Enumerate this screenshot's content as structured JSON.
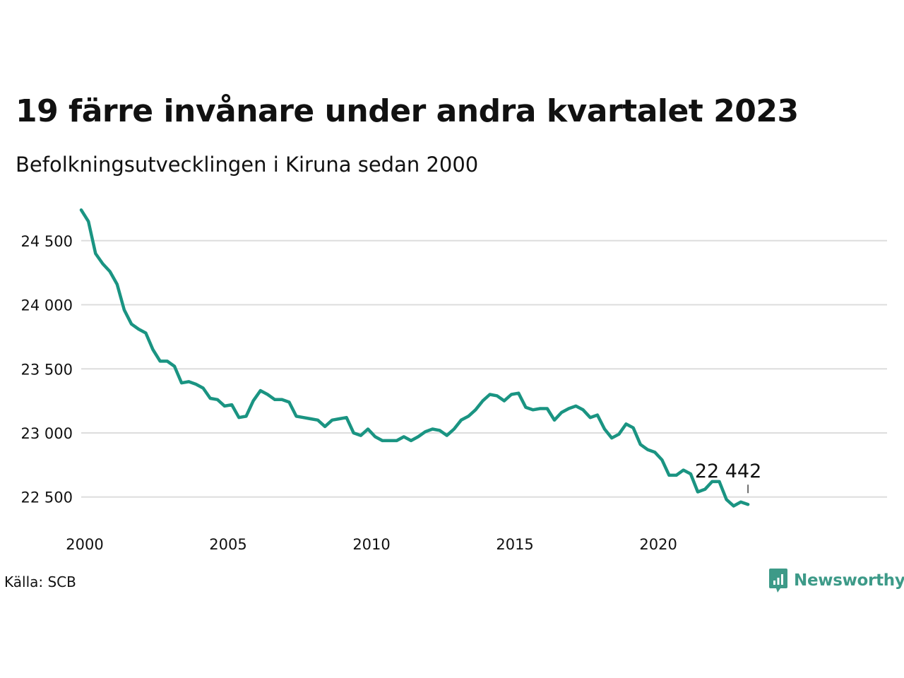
{
  "title": "19 färre invånare under andra kvartalet 2023",
  "subtitle": "Befolkningsutvecklingen i Kiruna sedan 2000",
  "source": "Källa: SCB",
  "brand": {
    "name": "Newsworthy",
    "icon": "newsworthy-logo-icon",
    "color": "#3d9a88"
  },
  "chart_data": {
    "type": "line",
    "x_start": 2000.0,
    "x_step": 0.25,
    "x_ticks": [
      2000,
      2005,
      2010,
      2015,
      2020
    ],
    "y_ticks": [
      22500,
      23000,
      23500,
      24000,
      24500
    ],
    "y_tick_labels": [
      "22 500",
      "23 000",
      "23 500",
      "24 000",
      "24 500"
    ],
    "ylim": [
      22300,
      24780
    ],
    "xlim": [
      2000,
      2028.1
    ],
    "grid": true,
    "line_color": "#1a9482",
    "annotation": {
      "text": "22 442",
      "value": 22442
    },
    "values": [
      24740,
      24650,
      24400,
      24320,
      24260,
      24160,
      23960,
      23850,
      23810,
      23780,
      23650,
      23560,
      23560,
      23520,
      23390,
      23400,
      23380,
      23350,
      23270,
      23260,
      23210,
      23220,
      23120,
      23130,
      23250,
      23330,
      23300,
      23260,
      23260,
      23240,
      23130,
      23120,
      23110,
      23100,
      23050,
      23100,
      23110,
      23120,
      23000,
      22980,
      23030,
      22970,
      22940,
      22940,
      22940,
      22970,
      22940,
      22970,
      23010,
      23030,
      23020,
      22980,
      23030,
      23100,
      23130,
      23180,
      23250,
      23300,
      23290,
      23250,
      23300,
      23310,
      23200,
      23180,
      23190,
      23190,
      23100,
      23160,
      23190,
      23210,
      23180,
      23120,
      23140,
      23030,
      22960,
      22990,
      23070,
      23040,
      22910,
      22870,
      22850,
      22790,
      22670,
      22670,
      22710,
      22680,
      22540,
      22560,
      22620,
      22620,
      22480,
      22430,
      22461,
      22442
    ]
  }
}
